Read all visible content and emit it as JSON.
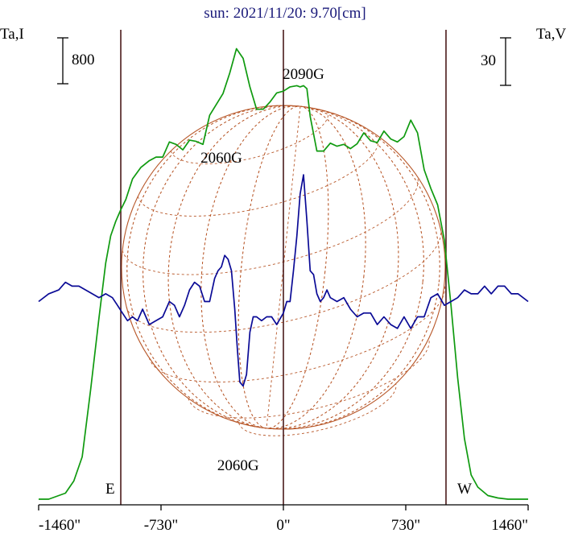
{
  "chart_data": {
    "type": "line",
    "title": "sun: 2021/11/20: 9.70[cm]",
    "left_axis_label": "Ta,I",
    "right_axis_label": "Ta,V",
    "left_scale_label": "800",
    "right_scale_label": "30",
    "x_tick_labels": [
      "-1460\"",
      "-730\"",
      "0\"",
      "730\"",
      "1460\""
    ],
    "x_ticks": [
      -1460,
      -730,
      0,
      730,
      1460
    ],
    "xlim": [
      -1460,
      1460
    ],
    "solar_limb_x": [
      -970,
      970
    ],
    "limb_labels": [
      "E",
      "W"
    ],
    "annotations": [
      {
        "text": "2090G",
        "x": 120
      },
      {
        "text": "2060G",
        "x": -370
      },
      {
        "text": "2060G",
        "x": -270
      }
    ],
    "colors": {
      "stokes_I": "#0f9a0f",
      "stokes_V": "#0a0a96",
      "limb_lines": "#4a1a1a",
      "disk_grid": "#b8582a",
      "title": "#1a1a7a"
    },
    "series": [
      {
        "key": "I",
        "x": [
          -1460,
          -1400,
          -1300,
          -1250,
          -1200,
          -1150,
          -1100,
          -1060,
          -1030,
          -1000,
          -970,
          -940,
          -900,
          -850,
          -800,
          -760,
          -720,
          -680,
          -640,
          -600,
          -560,
          -520,
          -480,
          -440,
          -400,
          -360,
          -320,
          -280,
          -240,
          -200,
          -160,
          -120,
          -80,
          -40,
          0,
          40,
          80,
          100,
          120,
          140,
          160,
          200,
          240,
          280,
          320,
          360,
          400,
          440,
          480,
          520,
          560,
          600,
          640,
          680,
          720,
          760,
          800,
          840,
          880,
          920,
          960,
          1000,
          1040,
          1080,
          1120,
          1160,
          1220,
          1280,
          1340,
          1400,
          1460
        ],
        "y": [
          0,
          0,
          100,
          300,
          700,
          1800,
          3000,
          3900,
          4350,
          4590,
          4780,
          4950,
          5290,
          5480,
          5590,
          5650,
          5650,
          5900,
          5860,
          5770,
          5930,
          5910,
          5860,
          6340,
          6520,
          6700,
          7040,
          7440,
          7280,
          6810,
          6440,
          6440,
          6560,
          6710,
          6740,
          6810,
          6830,
          6810,
          6830,
          6780,
          6320,
          5750,
          5750,
          5880,
          5830,
          5860,
          5790,
          5870,
          6050,
          5920,
          5890,
          6080,
          5950,
          5900,
          5990,
          6260,
          6050,
          5440,
          5130,
          4860,
          4280,
          3200,
          2000,
          1000,
          400,
          200,
          60,
          20,
          0,
          0,
          0
        ]
      },
      {
        "key": "V",
        "x": [
          -1460,
          -1400,
          -1340,
          -1300,
          -1260,
          -1220,
          -1180,
          -1140,
          -1100,
          -1060,
          -1020,
          -990,
          -960,
          -930,
          -900,
          -870,
          -840,
          -800,
          -760,
          -720,
          -680,
          -650,
          -620,
          -590,
          -560,
          -530,
          -500,
          -470,
          -440,
          -410,
          -390,
          -370,
          -350,
          -330,
          -310,
          -290,
          -275,
          -260,
          -240,
          -220,
          -200,
          -180,
          -160,
          -130,
          -100,
          -70,
          -40,
          0,
          20,
          40,
          60,
          80,
          100,
          120,
          140,
          160,
          180,
          200,
          220,
          240,
          260,
          280,
          320,
          360,
          400,
          440,
          480,
          520,
          560,
          600,
          640,
          680,
          720,
          760,
          800,
          840,
          880,
          920,
          960,
          1000,
          1040,
          1080,
          1120,
          1160,
          1200,
          1240,
          1280,
          1320,
          1360,
          1400,
          1460
        ],
        "y": [
          2,
          4,
          5,
          7,
          6,
          6,
          5,
          4,
          3,
          4,
          3,
          1,
          -1,
          -3,
          -2,
          -3,
          0,
          -4,
          -3,
          -2,
          2,
          1,
          -2,
          1,
          5,
          7,
          6,
          2,
          2,
          8,
          10,
          11,
          14,
          13,
          10,
          0,
          -10,
          -19,
          -20,
          -17,
          -6,
          -2,
          -2,
          -3,
          -2,
          -2,
          -4,
          -1,
          2,
          2,
          10,
          19,
          30,
          35,
          23,
          10,
          9,
          4,
          2,
          3,
          5,
          3,
          2,
          3,
          0,
          -2,
          -1,
          -1,
          -4,
          -2,
          -4,
          -5,
          -2,
          -5,
          -2,
          -2,
          3,
          4,
          1,
          2,
          3,
          5,
          4,
          4,
          6,
          4,
          6,
          6,
          4,
          4,
          2
        ]
      }
    ]
  }
}
